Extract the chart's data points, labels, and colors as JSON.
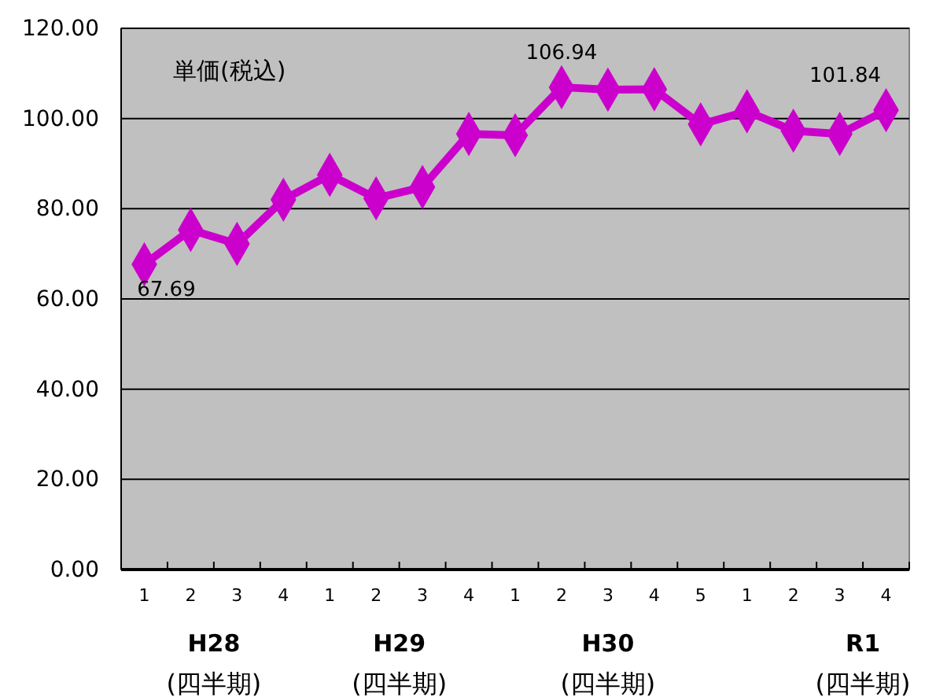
{
  "chart_data": {
    "type": "line",
    "title": "単価(税込)",
    "categories": [
      "1",
      "2",
      "3",
      "4",
      "1",
      "2",
      "3",
      "4",
      "1",
      "2",
      "3",
      "4",
      "5",
      "1",
      "2",
      "3",
      "4"
    ],
    "series": [
      {
        "color": "#cc00cc",
        "values": [
          67.69,
          75.3,
          72.2,
          82.0,
          87.5,
          82.3,
          84.8,
          96.6,
          96.3,
          106.94,
          106.4,
          106.5,
          98.7,
          101.6,
          97.3,
          96.6,
          101.84
        ],
        "value_labels": [
          "67.69",
          null,
          null,
          null,
          null,
          null,
          null,
          null,
          null,
          "106.94",
          null,
          null,
          null,
          null,
          null,
          null,
          "101.84"
        ]
      }
    ],
    "ylim": [
      0,
      120
    ],
    "yticks": [
      {
        "value": 0,
        "label": "0.00"
      },
      {
        "value": 20,
        "label": "20.00"
      },
      {
        "value": 40,
        "label": "40.00"
      },
      {
        "value": 60,
        "label": "60.00"
      },
      {
        "value": 80,
        "label": "80.00"
      },
      {
        "value": 100,
        "label": "100.00"
      },
      {
        "value": 120,
        "label": "120.00"
      }
    ],
    "grid": "y",
    "marker": "diamond",
    "line_style": "solid",
    "annotations": [
      "H28",
      "(四半期)",
      "H29",
      "(四半期)",
      "H30",
      "(四半期)",
      "R1",
      "(四半期)"
    ]
  }
}
